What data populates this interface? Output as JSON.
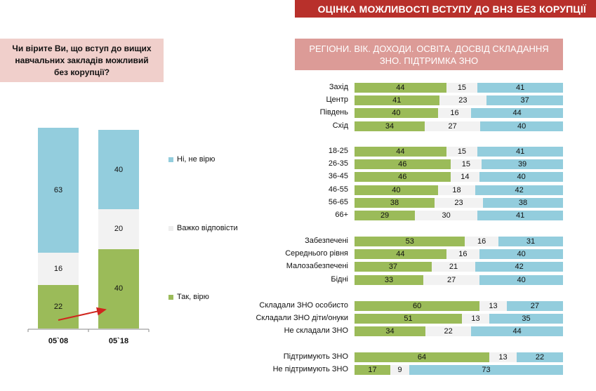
{
  "header": {
    "title": "ОЦІНКА МОЖЛИВОСТІ ВСТУПУ ДО ВНЗ БЕЗ КОРУПЦІЇ",
    "question": "Чи вірите Ви, що вступ до вищих навчальних закладів можливий без корупції?",
    "subheader": "РЕГІОНИ. ВІК. ДОХОДИ. ОСВІТА. ДОСВІД  СКЛАДАННЯ ЗНО. ПІДТРИМКА ЗНО"
  },
  "colors": {
    "yes": "#9bbb59",
    "hard": "#f2f2f2",
    "no": "#93cddd",
    "title": "#b8302b",
    "arrow": "#d0261e"
  },
  "chart_data": [
    {
      "type": "bar",
      "stacked": true,
      "categories": [
        "05`08",
        "05`18"
      ],
      "series": [
        {
          "name": "Так, вірю",
          "values": [
            22,
            40
          ]
        },
        {
          "name": "Важко відповісти",
          "values": [
            16,
            20
          ]
        },
        {
          "name": "Ні, не вірю",
          "values": [
            63,
            40
          ]
        }
      ],
      "legend": "right"
    },
    {
      "type": "bar",
      "orientation": "horizontal",
      "stacked": true,
      "groups": [
        {
          "rows": [
            {
              "label": "Захід",
              "values": [
                44,
                15,
                41
              ]
            },
            {
              "label": "Центр",
              "values": [
                41,
                23,
                37
              ]
            },
            {
              "label": "Південь",
              "values": [
                40,
                16,
                44
              ]
            },
            {
              "label": "Схід",
              "values": [
                34,
                27,
                40
              ]
            }
          ]
        },
        {
          "rows": [
            {
              "label": "18-25",
              "values": [
                44,
                15,
                41
              ]
            },
            {
              "label": "26-35",
              "values": [
                46,
                15,
                39
              ]
            },
            {
              "label": "36-45",
              "values": [
                46,
                14,
                40
              ]
            },
            {
              "label": "46-55",
              "values": [
                40,
                18,
                42
              ]
            },
            {
              "label": "56-65",
              "values": [
                38,
                23,
                38
              ]
            },
            {
              "label": "66+",
              "values": [
                29,
                30,
                41
              ]
            }
          ]
        },
        {
          "rows": [
            {
              "label": "Забезпечені",
              "values": [
                53,
                16,
                31
              ]
            },
            {
              "label": "Середнього рівня",
              "values": [
                44,
                16,
                40
              ]
            },
            {
              "label": "Малозабезпечені",
              "values": [
                37,
                21,
                42
              ]
            },
            {
              "label": "Бідні",
              "values": [
                33,
                27,
                40
              ]
            }
          ]
        },
        {
          "rows": [
            {
              "label": "Складали ЗНО особисто",
              "values": [
                60,
                13,
                27
              ]
            },
            {
              "label": "Складали ЗНО діти/онуки",
              "values": [
                51,
                13,
                35
              ]
            },
            {
              "label": "Не складали ЗНО",
              "values": [
                34,
                22,
                44
              ]
            }
          ]
        },
        {
          "rows": [
            {
              "label": "Підтримують ЗНО",
              "values": [
                64,
                13,
                22
              ]
            },
            {
              "label": "Не підтримують ЗНО",
              "values": [
                17,
                9,
                73
              ]
            }
          ]
        }
      ]
    }
  ]
}
